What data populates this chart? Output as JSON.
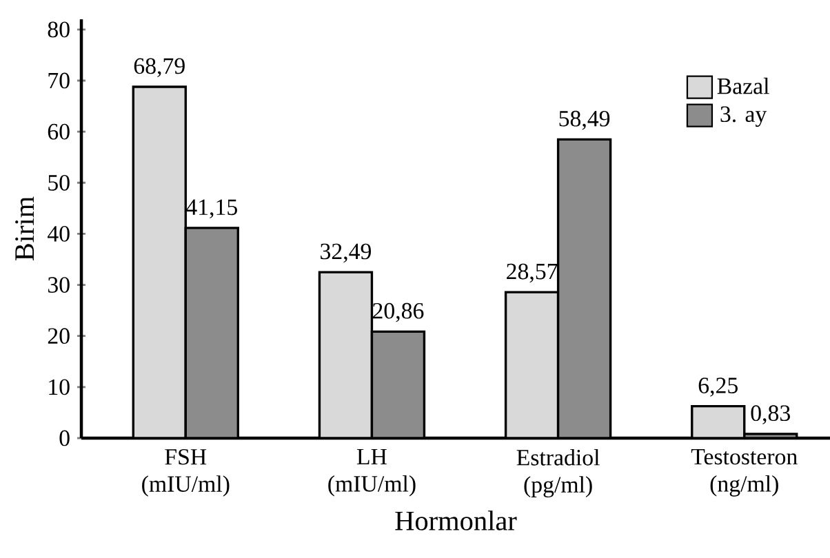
{
  "chart_data": {
    "type": "bar",
    "xlabel": "Hormonlar",
    "ylabel": "Birim",
    "categories": [
      "FSH (mIU/ml)",
      "LH (mIU/ml)",
      "Estradiol (pg/ml)",
      "Testosteron (ng/ml)"
    ],
    "series": [
      {
        "name": "Bazal",
        "color": "#d9d9d9",
        "values": [
          68.79,
          32.49,
          28.57,
          6.25
        ],
        "value_labels": [
          "68,79",
          "32,49",
          "28,57",
          "6,25"
        ]
      },
      {
        "name": "3. ay",
        "color": "#8c8c8c",
        "values": [
          41.15,
          20.86,
          58.49,
          0.83
        ],
        "value_labels": [
          "41,15",
          "20,86",
          "58,49",
          "0,83"
        ]
      }
    ],
    "ylim": [
      0,
      82
    ],
    "yticks": [
      0,
      10,
      20,
      30,
      40,
      50,
      60,
      70,
      80
    ],
    "grid": false,
    "legend": "top right"
  }
}
